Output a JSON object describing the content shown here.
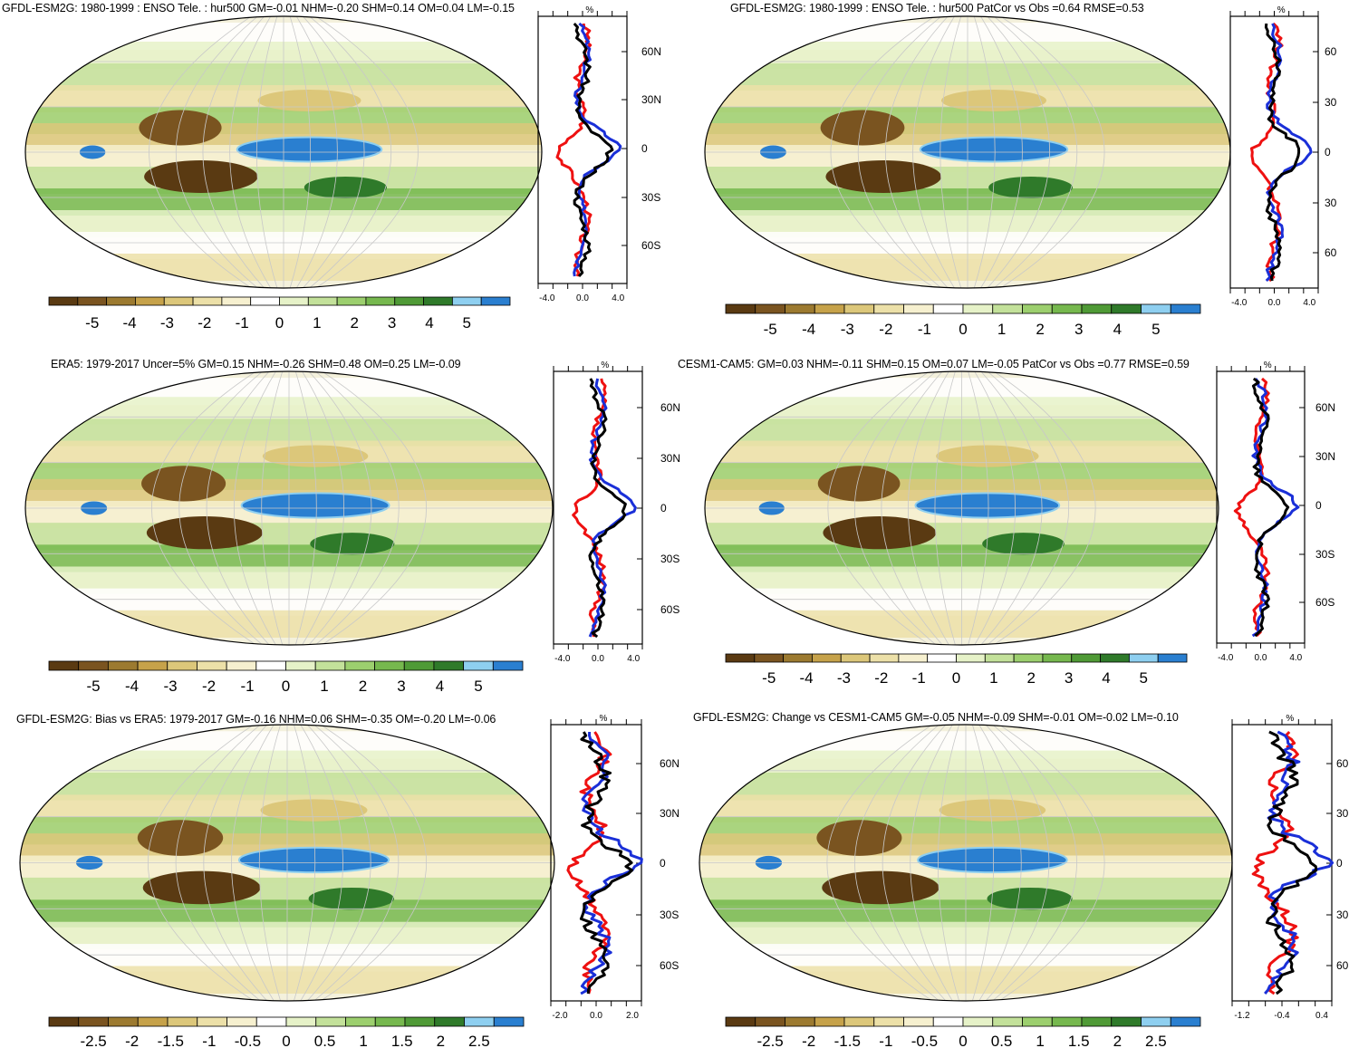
{
  "panels": [
    {
      "title": "GFDL-ESM2G: 1980-1999 : ENSO Tele. : hur500 GM=-0.01 NHM=-0.20 SHM=0.14 OM=0.04 LM=-0.15",
      "colorbar_labels": [
        "-5",
        "-4",
        "-3",
        "-2",
        "-1",
        "0",
        "1",
        "2",
        "3",
        "4",
        "5"
      ],
      "lat_labels": [
        "60N",
        "30N",
        "0",
        "30S",
        "60S"
      ],
      "unit": "%",
      "x_ticks": [
        "-4.0",
        "0.0",
        "4.0"
      ]
    },
    {
      "title": "GFDL-ESM2G: 1980-1999 : ENSO Tele. : hur500 PatCor vs Obs =0.64 RMSE=0.53",
      "colorbar_labels": [
        "-5",
        "-4",
        "-3",
        "-2",
        "-1",
        "0",
        "1",
        "2",
        "3",
        "4",
        "5"
      ],
      "lat_labels": [
        "60",
        "30",
        "0",
        "30",
        "60"
      ],
      "unit": "%",
      "x_ticks": [
        "-4.0",
        "0.0",
        "4.0"
      ]
    },
    {
      "title": "ERA5: 1979-2017 Uncer=5% GM=0.15 NHM=-0.26 SHM=0.48 OM=0.25 LM=-0.09",
      "colorbar_labels": [
        "-5",
        "-4",
        "-3",
        "-2",
        "-1",
        "0",
        "1",
        "2",
        "3",
        "4",
        "5"
      ],
      "lat_labels": [
        "60N",
        "30N",
        "0",
        "30S",
        "60S"
      ],
      "unit": "%",
      "x_ticks": [
        "-4.0",
        "0.0",
        "4.0"
      ]
    },
    {
      "title": "CESM1-CAM5: GM=0.03 NHM=-0.11 SHM=0.15 OM=0.07 LM=-0.05 PatCor vs Obs =0.77 RMSE=0.59",
      "colorbar_labels": [
        "-5",
        "-4",
        "-3",
        "-2",
        "-1",
        "0",
        "1",
        "2",
        "3",
        "4",
        "5"
      ],
      "lat_labels": [
        "60N",
        "30N",
        "0",
        "30S",
        "60S"
      ],
      "unit": "%",
      "x_ticks": [
        "-4.0",
        "0.0",
        "4.0"
      ]
    },
    {
      "title": "GFDL-ESM2G: Bias vs ERA5: 1979-2017 GM=-0.16 NHM=0.06 SHM=-0.35 OM=-0.20 LM=-0.06",
      "colorbar_labels": [
        "-2.5",
        "-2",
        "-1.5",
        "-1",
        "-0.5",
        "0",
        "0.5",
        "1",
        "1.5",
        "2",
        "2.5"
      ],
      "lat_labels": [
        "60N",
        "30N",
        "0",
        "30S",
        "60S"
      ],
      "unit": "%",
      "x_ticks": [
        "-2.0",
        "0.0",
        "2.0"
      ]
    },
    {
      "title": "GFDL-ESM2G: Change vs CESM1-CAM5 GM=-0.05 NHM=-0.09 SHM=-0.01 OM=-0.02 LM=-0.10",
      "colorbar_labels": [
        "-2.5",
        "-2",
        "-1.5",
        "-1",
        "-0.5",
        "0",
        "0.5",
        "1",
        "1.5",
        "2",
        "2.5"
      ],
      "lat_labels": [
        "60",
        "30",
        "0",
        "30",
        "60"
      ],
      "unit": "%",
      "x_ticks": [
        "-1.2",
        "-0.4",
        "0.4"
      ]
    }
  ],
  "palette": [
    "#5a3a12",
    "#7a5420",
    "#9c7a30",
    "#c6a24a",
    "#dcc77a",
    "#ece0a8",
    "#f6f0cf",
    "#ffffff",
    "#e6f2c8",
    "#c3e19a",
    "#9ccf6e",
    "#76b84e",
    "#4f9a36",
    "#2f7a2a",
    "#8ecff0",
    "#2a7fd0"
  ],
  "line_colors": {
    "model": "#e11",
    "obs": "#1a2fd8",
    "ensemble": "#000000"
  }
}
